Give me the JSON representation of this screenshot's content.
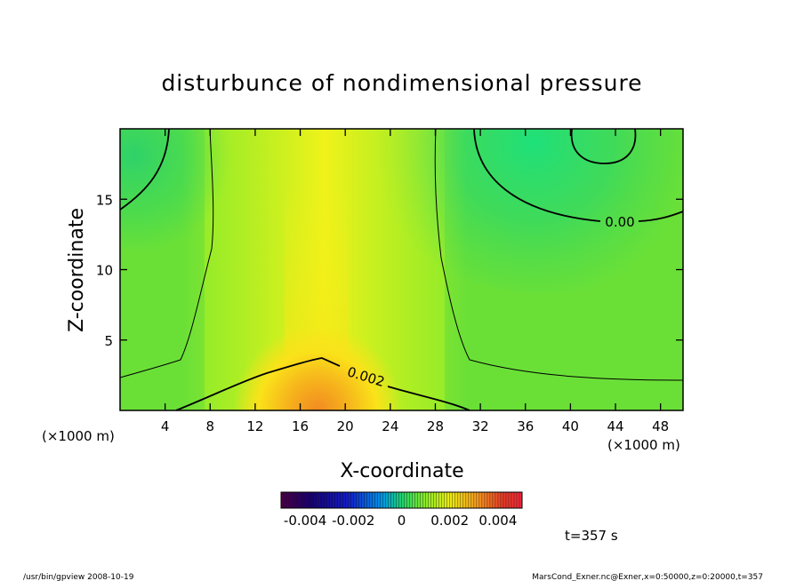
{
  "chart_data": {
    "type": "heatmap",
    "title": "disturbunce of nondimensional pressure",
    "xlabel": "X-coordinate",
    "ylabel": "Z-coordinate",
    "x_unit_left": "(×1000 m)",
    "x_unit_right": "(×1000 m)",
    "xlim": [
      0,
      50
    ],
    "ylim": [
      0,
      20
    ],
    "xticks": [
      4,
      8,
      12,
      16,
      20,
      24,
      28,
      32,
      36,
      40,
      44,
      48
    ],
    "yticks": [
      5,
      10,
      15
    ],
    "contour_labels": [
      {
        "text": "0.00",
        "x": 43.3,
        "z": 13.4
      },
      {
        "text": "0.002",
        "x": 21.8,
        "z": 2.4
      }
    ],
    "colorbar": {
      "range": [
        -0.005,
        0.005
      ],
      "ticks": [
        "-0.004",
        "-0.002",
        "0",
        "0.002",
        "0.004"
      ],
      "tick_values": [
        -0.004,
        -0.002,
        0,
        0.002,
        0.004
      ]
    },
    "time_label": "t=357 s",
    "footer_left": "/usr/bin/gpview   2008-10-19",
    "footer_right": "MarsCond_Exner.nc@Exner,x=0:50000,z=0:20000,t=357"
  }
}
